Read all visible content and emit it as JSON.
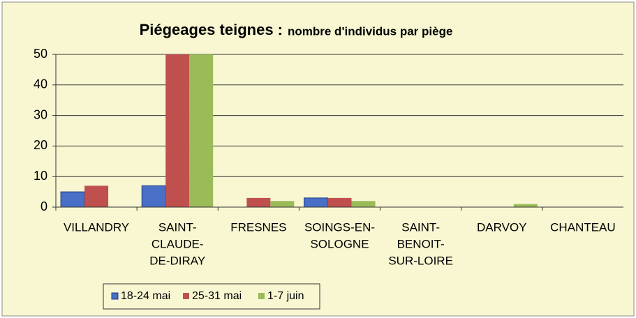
{
  "chart_data": {
    "type": "bar",
    "title": "Piégeages teignes :",
    "subtitle": "nombre d'individus par piège",
    "categories": [
      [
        "VILLANDRY"
      ],
      [
        "SAINT-",
        "CLAUDE-",
        "DE-DIRAY"
      ],
      [
        "FRESNES"
      ],
      [
        "SOINGS-EN-",
        "SOLOGNE"
      ],
      [
        "SAINT-",
        "BENOIT-",
        "SUR-LOIRE"
      ],
      [
        "DARVOY"
      ],
      [
        "CHANTEAU"
      ]
    ],
    "series": [
      {
        "name": "18-24 mai",
        "color": "#4a6fc7",
        "values": [
          5,
          7,
          0,
          3,
          0,
          0,
          0
        ]
      },
      {
        "name": "25-31 mai",
        "color": "#c0504d",
        "values": [
          7,
          50,
          3,
          3,
          0,
          0,
          0
        ]
      },
      {
        "name": "1-7 juin",
        "color": "#9bbb59",
        "values": [
          0,
          50,
          2,
          2,
          0,
          1,
          0
        ]
      }
    ],
    "ylim": [
      0,
      50
    ],
    "yticks": [
      0,
      10,
      20,
      30,
      40,
      50
    ],
    "grid": true,
    "legend": "bottom"
  }
}
